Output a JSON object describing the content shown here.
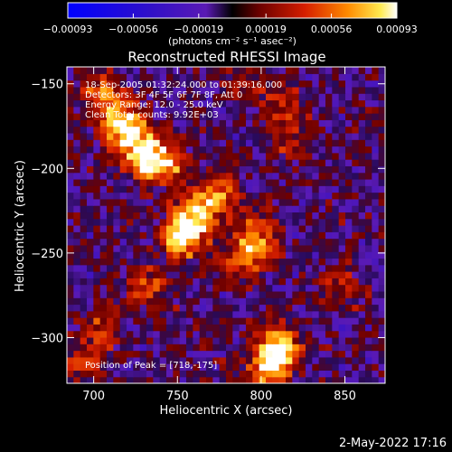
{
  "chart_data": {
    "type": "heatmap",
    "title": "Reconstructed RHESSI Image",
    "xlabel": "Heliocentric X (arcsec)",
    "ylabel": "Heliocentric Y (arcsec)",
    "xlim": [
      684,
      874
    ],
    "ylim": [
      -327,
      -140
    ],
    "x_ticks": [
      700,
      750,
      800,
      850
    ],
    "x_tick_labels": [
      "700",
      "750",
      "800",
      "850"
    ],
    "y_ticks": [
      -300,
      -250,
      -200,
      -150
    ],
    "y_tick_labels": [
      "−300",
      "−250",
      "−200",
      "−150"
    ],
    "colorbar": {
      "min": -0.00093,
      "max": 0.00093,
      "ticks": [
        -0.00093,
        -0.00056,
        -0.00019,
        0.00019,
        0.00056,
        0.00093
      ],
      "tick_labels": [
        "−0.00093",
        "−0.00056",
        "−0.00019",
        "0.00019",
        "0.00056",
        "0.00093"
      ],
      "unit_label": "(photons cm⁻² s⁻¹ asec⁻²)"
    },
    "annotations": [
      "18-Sep-2005 01:32:24.000 to 01:39:16.000",
      "Detectors: 3F 4F 5F 6F 7F 8F, Att 0",
      "Energy Range: 12.0 - 25.0 keV",
      "Clean    Total counts: 9.92E+03"
    ],
    "peak_label": "Position of Peak = [718,-175]",
    "peak_position": [
      718,
      -175
    ],
    "sources": [
      {
        "x": 718,
        "y": -175,
        "value": 0.00093
      },
      {
        "x": 729,
        "y": -190,
        "value": 0.0008
      },
      {
        "x": 742,
        "y": -197,
        "value": 0.0007
      },
      {
        "x": 706,
        "y": -157,
        "value": 0.0006
      },
      {
        "x": 760,
        "y": -228,
        "value": 0.00085
      },
      {
        "x": 775,
        "y": -215,
        "value": 0.0006
      },
      {
        "x": 752,
        "y": -242,
        "value": 0.00075
      },
      {
        "x": 797,
        "y": -240,
        "value": 0.0006
      },
      {
        "x": 790,
        "y": -255,
        "value": 0.0005
      },
      {
        "x": 733,
        "y": -270,
        "value": 0.00045
      },
      {
        "x": 705,
        "y": -295,
        "value": 0.0004
      },
      {
        "x": 695,
        "y": -315,
        "value": 0.00035
      },
      {
        "x": 810,
        "y": -305,
        "value": 0.0008
      },
      {
        "x": 805,
        "y": -318,
        "value": 0.0007
      },
      {
        "x": 820,
        "y": -180,
        "value": 0.00035
      },
      {
        "x": 812,
        "y": -160,
        "value": 0.0003
      },
      {
        "x": 848,
        "y": -268,
        "value": 0.00035
      },
      {
        "x": 790,
        "y": -150,
        "value": 0.0003
      }
    ]
  },
  "footer": {
    "timestamp": "2-May-2022 17:16"
  }
}
